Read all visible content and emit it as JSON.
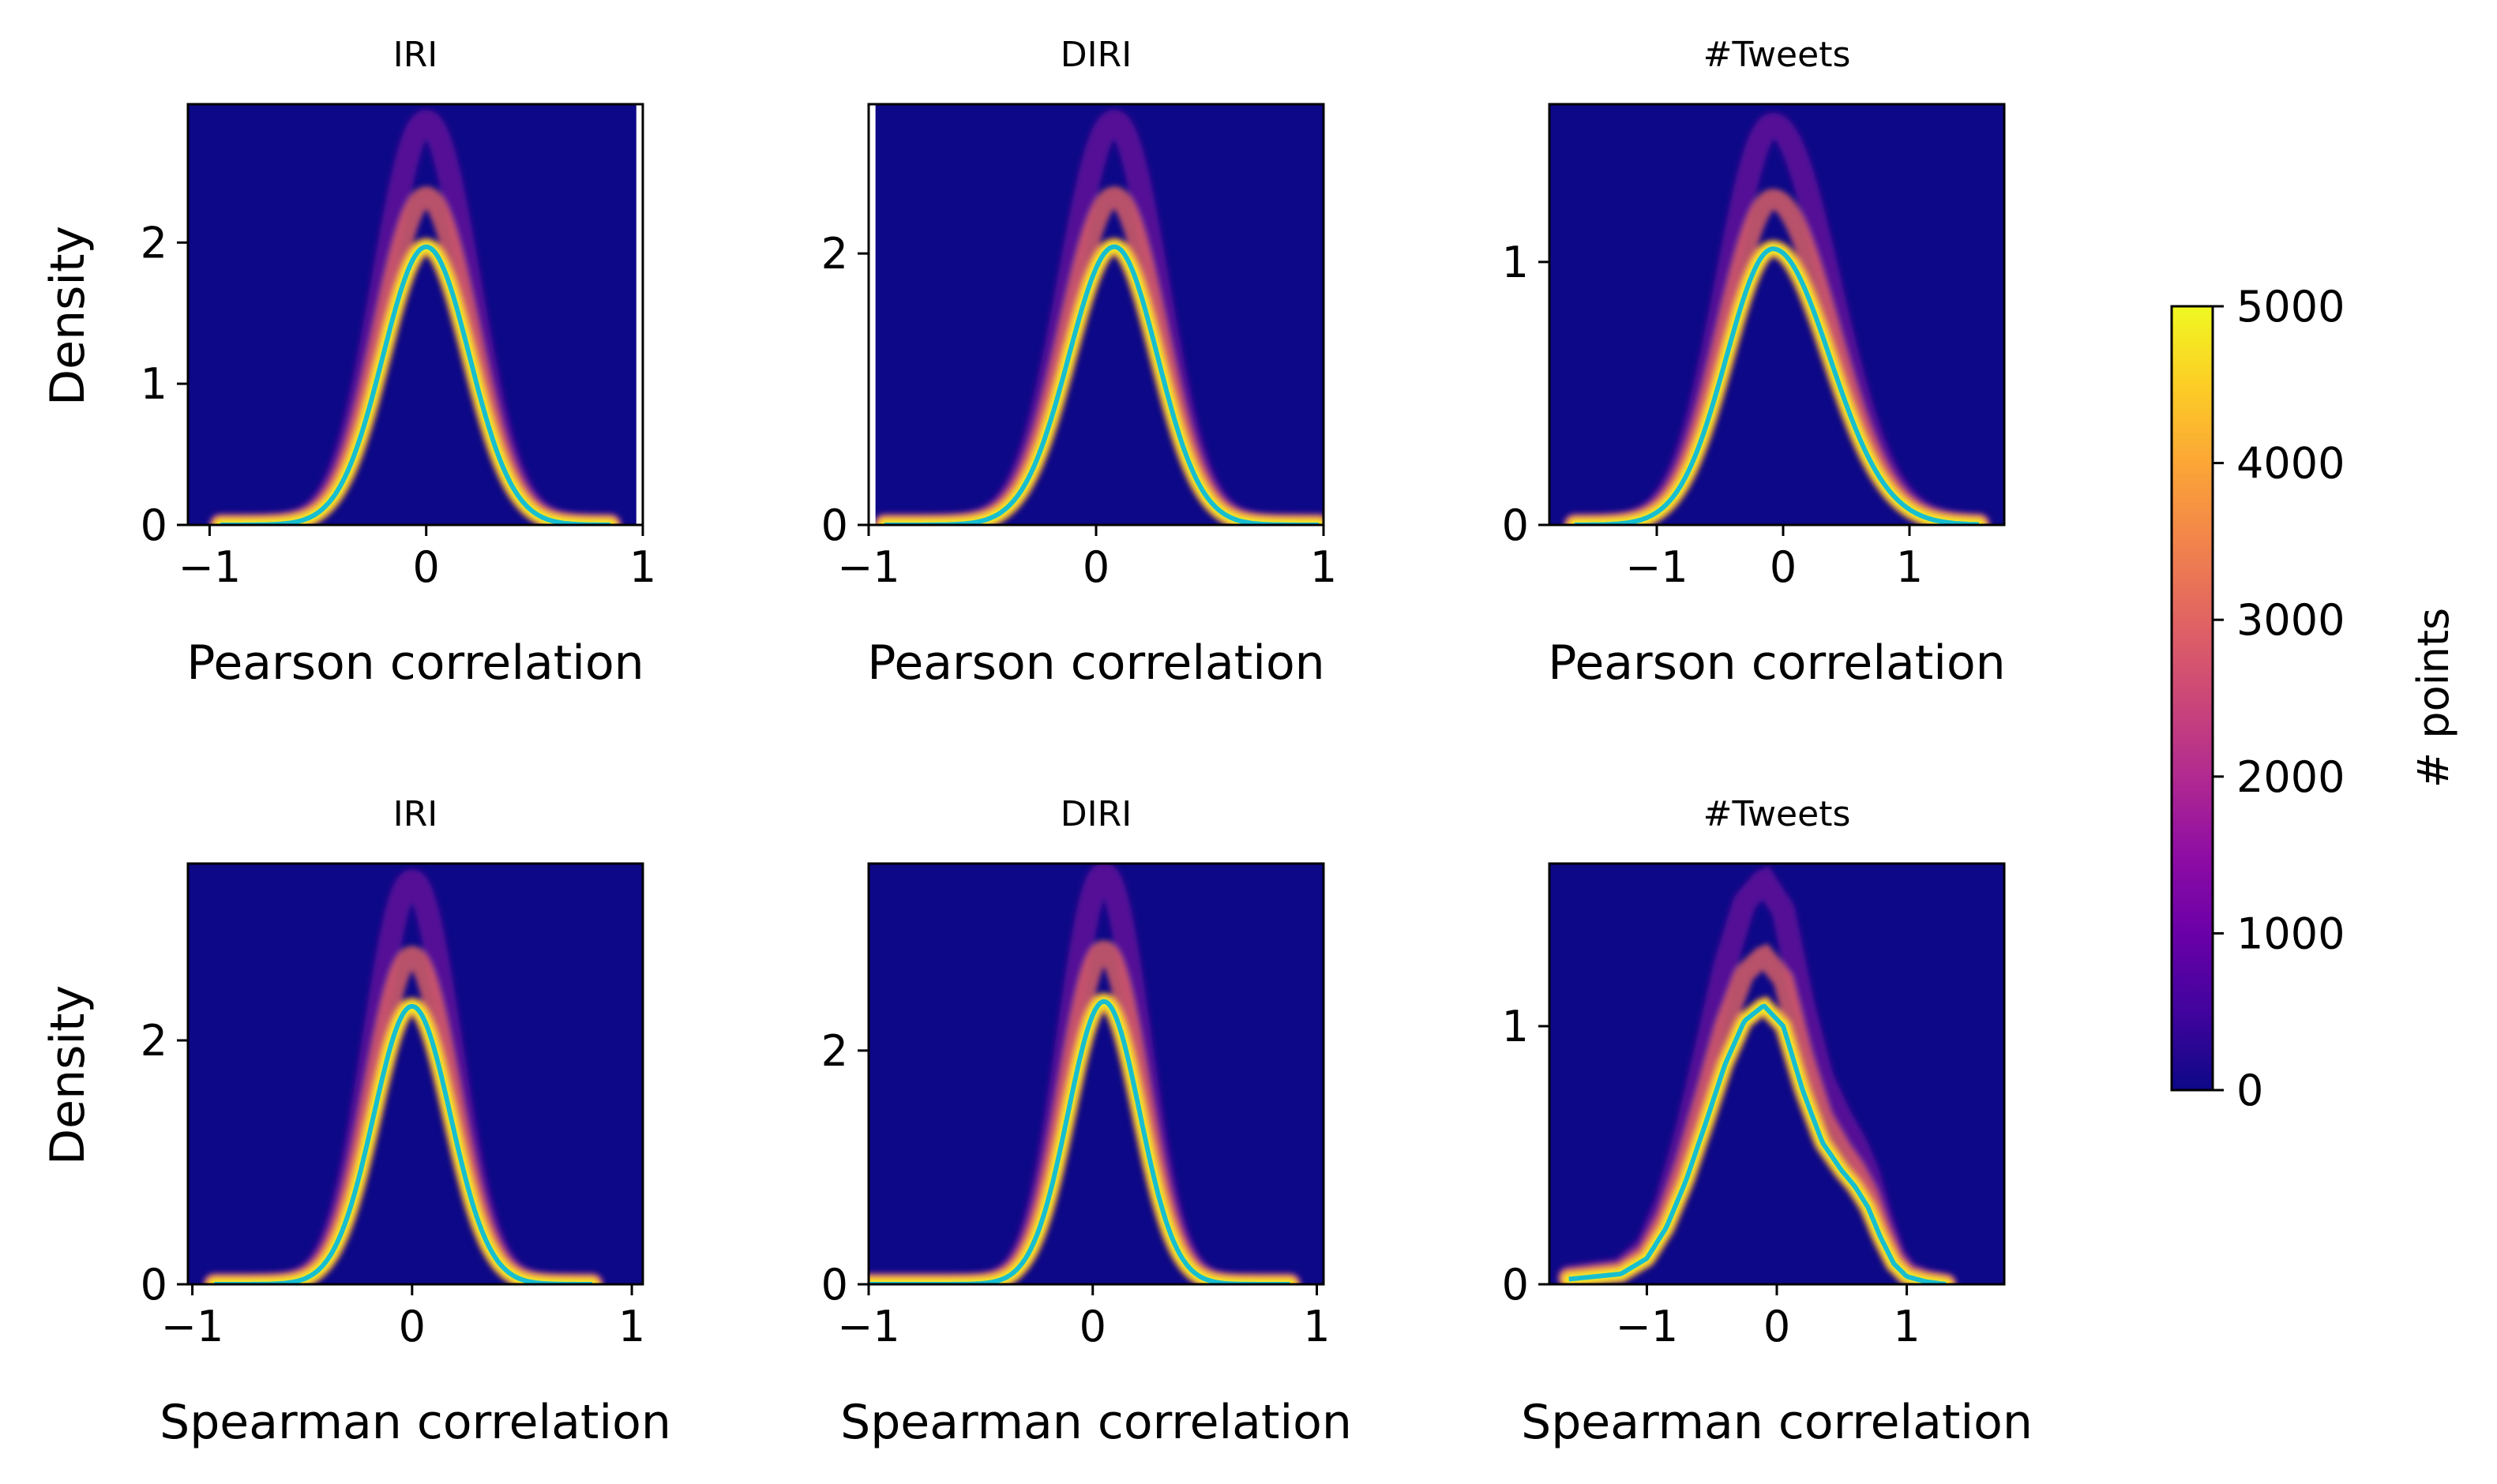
{
  "chart_data": [
    {
      "type": "heatmap",
      "title": "IRI",
      "xlabel": "Pearson correlation",
      "ylabel": "Density",
      "xlim": [
        -1.1,
        1.0
      ],
      "ylim": [
        0,
        2.98
      ],
      "xticks": [
        -1,
        0,
        1
      ],
      "xtick_labels": [
        "−1",
        "0",
        "1"
      ],
      "yticks": [
        0,
        1,
        2
      ],
      "ytick_labels": [
        "0",
        "1",
        "2"
      ],
      "curve": {
        "mode": "gaussian",
        "peak_x": 0.0,
        "peak_y": 1.97,
        "sd_left": 0.2,
        "sd_right": 0.2,
        "end_low": -0.95,
        "end_high": 0.85,
        "color": "#17becf"
      },
      "white_band_x": [
        0.97,
        1.0
      ]
    },
    {
      "type": "heatmap",
      "title": "DIRI",
      "xlabel": "Pearson correlation",
      "ylabel": "",
      "xlim": [
        -1.0,
        1.0
      ],
      "ylim": [
        0,
        3.1
      ],
      "xticks": [
        -1,
        0,
        1
      ],
      "xtick_labels": [
        "−1",
        "0",
        "1"
      ],
      "yticks": [
        0,
        2
      ],
      "ytick_labels": [
        "0",
        "2"
      ],
      "curve": {
        "mode": "gaussian",
        "peak_x": 0.08,
        "peak_y": 2.05,
        "sd_left": 0.2,
        "sd_right": 0.19,
        "end_low": -0.93,
        "end_high": 0.98,
        "color": "#17becf"
      },
      "white_band_x": [
        -1.0,
        -0.97
      ]
    },
    {
      "type": "heatmap",
      "title": "#Tweets",
      "xlabel": "Pearson correlation",
      "ylabel": "",
      "xlim": [
        -1.85,
        1.75
      ],
      "ylim": [
        0,
        1.6
      ],
      "xticks": [
        -1,
        0,
        1
      ],
      "xtick_labels": [
        "−1",
        "0",
        "1"
      ],
      "yticks": [
        0,
        1
      ],
      "ytick_labels": [
        "0",
        "1"
      ],
      "curve": {
        "mode": "gaussian",
        "peak_x": -0.08,
        "peak_y": 1.05,
        "sd_left": 0.37,
        "sd_right": 0.45,
        "end_low": -1.65,
        "end_high": 1.55,
        "color": "#17becf"
      }
    },
    {
      "type": "heatmap",
      "title": "IRI",
      "xlabel": "Spearman correlation",
      "ylabel": "Density",
      "xlim": [
        -1.02,
        1.05
      ],
      "ylim": [
        0,
        3.45
      ],
      "xticks": [
        -1,
        0,
        1
      ],
      "xtick_labels": [
        "−1",
        "0",
        "1"
      ],
      "yticks": [
        0,
        2
      ],
      "ytick_labels": [
        "0",
        "2"
      ],
      "curve": {
        "mode": "gaussian",
        "peak_x": 0.0,
        "peak_y": 2.28,
        "sd_left": 0.175,
        "sd_right": 0.175,
        "end_low": -0.9,
        "end_high": 0.82,
        "color": "#17becf"
      }
    },
    {
      "type": "heatmap",
      "title": "DIRI",
      "xlabel": "Spearman correlation",
      "ylabel": "",
      "xlim": [
        -1.0,
        1.03
      ],
      "ylim": [
        0,
        3.6
      ],
      "xticks": [
        -1,
        0,
        1
      ],
      "xtick_labels": [
        "−1",
        "0",
        "1"
      ],
      "yticks": [
        0,
        2
      ],
      "ytick_labels": [
        "0",
        "2"
      ],
      "curve": {
        "mode": "gaussian",
        "peak_x": 0.05,
        "peak_y": 2.42,
        "sd_left": 0.16,
        "sd_right": 0.16,
        "end_low": -1.0,
        "end_high": 0.88,
        "color": "#17becf"
      }
    },
    {
      "type": "heatmap",
      "title": "#Tweets",
      "xlabel": "Spearman correlation",
      "ylabel": "",
      "xlim": [
        -1.75,
        1.75
      ],
      "ylim": [
        0,
        1.63
      ],
      "xticks": [
        -1,
        0,
        1
      ],
      "xtick_labels": [
        "−1",
        "0",
        "1"
      ],
      "yticks": [
        0,
        1
      ],
      "ytick_labels": [
        "0",
        "1"
      ],
      "curve": {
        "mode": "points",
        "x": [
          -1.6,
          -1.4,
          -1.2,
          -1.0,
          -0.85,
          -0.7,
          -0.55,
          -0.4,
          -0.25,
          -0.1,
          0.05,
          0.2,
          0.35,
          0.5,
          0.6,
          0.7,
          0.8,
          0.9,
          1.0,
          1.15,
          1.3
        ],
        "y": [
          0.02,
          0.03,
          0.04,
          0.1,
          0.22,
          0.4,
          0.62,
          0.85,
          1.02,
          1.08,
          1.0,
          0.75,
          0.55,
          0.44,
          0.38,
          0.3,
          0.18,
          0.08,
          0.03,
          0.01,
          0.0
        ],
        "color": "#17becf"
      }
    }
  ],
  "colorbar": {
    "label": "# points",
    "min": 0,
    "max": 5000,
    "ticks": [
      0,
      1000,
      2000,
      3000,
      4000,
      5000
    ],
    "tick_labels": [
      "0",
      "1000",
      "2000",
      "3000",
      "4000",
      "5000"
    ],
    "colormap": "plasma",
    "background": "#0d0887"
  }
}
